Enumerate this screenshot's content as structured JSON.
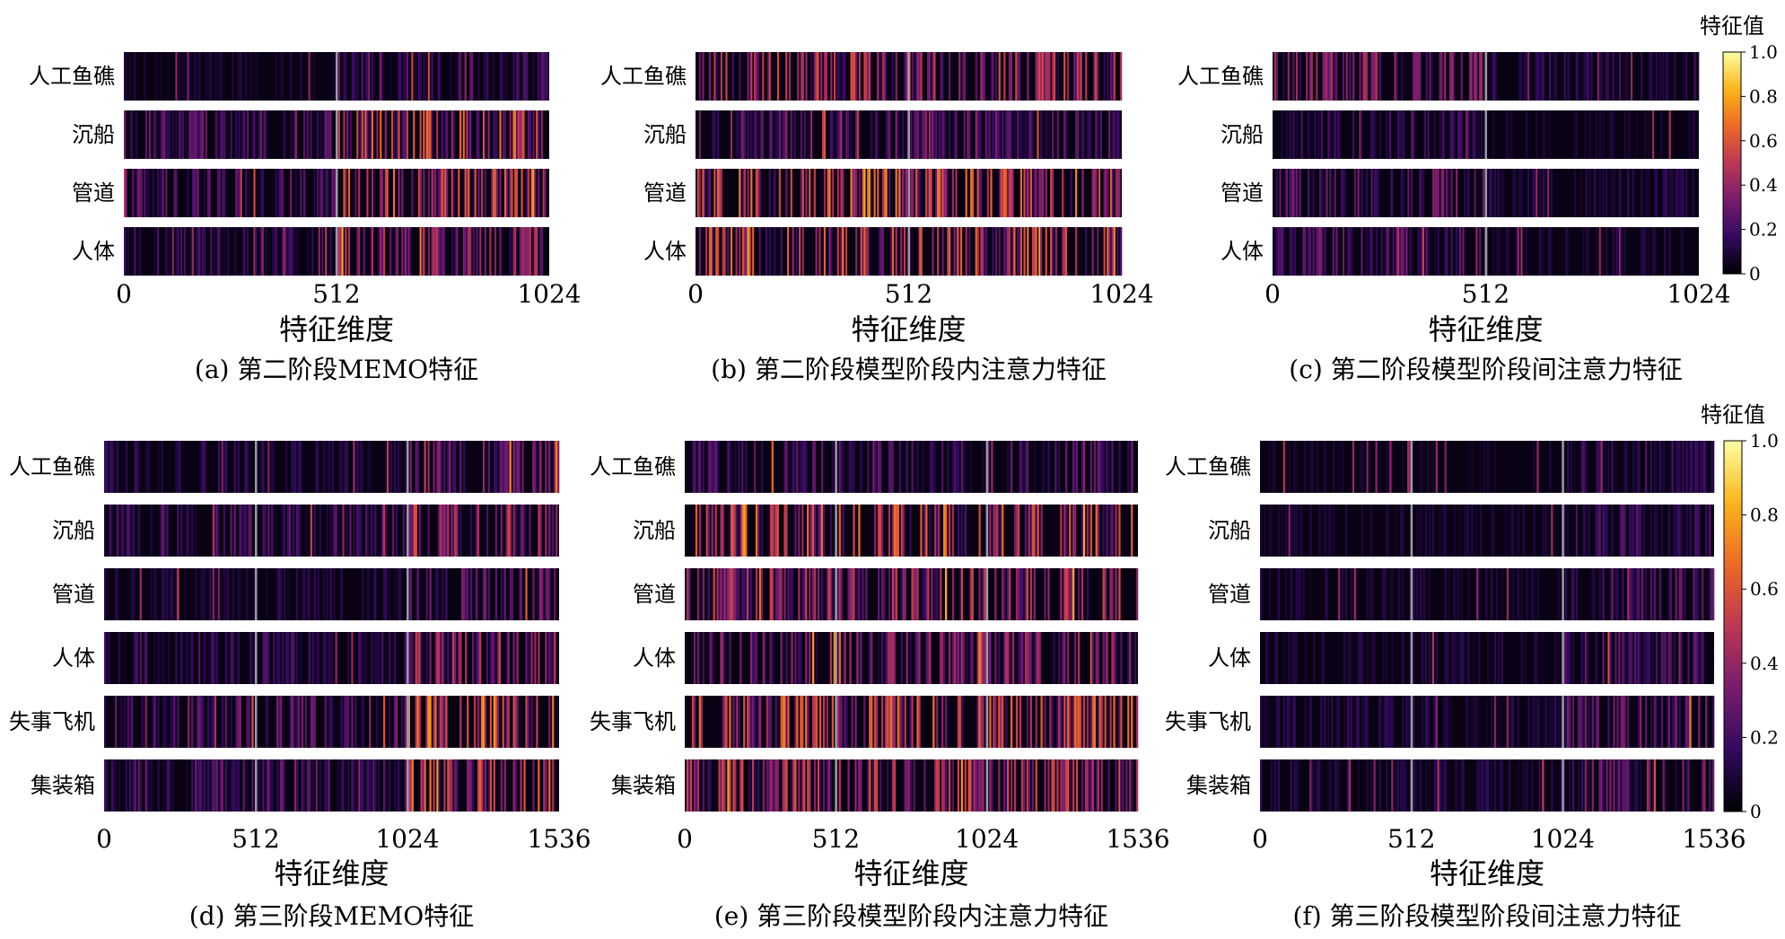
{
  "chart_data": [
    {
      "type": "heatmap",
      "caption": "(a) 第二阶段MEMO特征",
      "xlabel": "特征维度",
      "x_ticks": [
        "0",
        "512",
        "1024"
      ],
      "xlim": [
        0,
        1024
      ],
      "rows": [
        "人工鱼礁",
        "沉船",
        "管道",
        "人体"
      ],
      "row_mean_intensity": [
        0.12,
        0.3,
        0.3,
        0.22
      ],
      "bright_lines_at": [
        512
      ],
      "high_region": "512-1024"
    },
    {
      "type": "heatmap",
      "caption": "(b) 第二阶段模型阶段内注意力特征",
      "xlabel": "特征维度",
      "x_ticks": [
        "0",
        "512",
        "1024"
      ],
      "xlim": [
        0,
        1024
      ],
      "rows": [
        "人工鱼礁",
        "沉船",
        "管道",
        "人体"
      ],
      "row_mean_intensity": [
        0.26,
        0.14,
        0.32,
        0.3
      ],
      "bright_lines_at": [
        512
      ],
      "high_region": "0-1024"
    },
    {
      "type": "heatmap",
      "caption": "(c) 第二阶段模型阶段间注意力特征",
      "xlabel": "特征维度",
      "x_ticks": [
        "0",
        "512",
        "1024"
      ],
      "xlim": [
        0,
        1024
      ],
      "rows": [
        "人工鱼礁",
        "沉船",
        "管道",
        "人体"
      ],
      "row_mean_intensity": [
        0.2,
        0.1,
        0.16,
        0.14
      ],
      "bright_lines_at": [
        512
      ],
      "high_region": "0-512",
      "colorbar": {
        "label": "特征值",
        "ticks": [
          "0",
          "0.2",
          "0.4",
          "0.6",
          "0.8",
          "1.0"
        ],
        "range": [
          0,
          1
        ]
      }
    },
    {
      "type": "heatmap",
      "caption": "(d) 第三阶段MEMO特征",
      "xlabel": "特征维度",
      "x_ticks": [
        "0",
        "512",
        "1024",
        "1536"
      ],
      "xlim": [
        0,
        1536
      ],
      "rows": [
        "人工鱼礁",
        "沉船",
        "管道",
        "人体",
        "失事飞机",
        "集装箱"
      ],
      "row_mean_intensity": [
        0.18,
        0.26,
        0.16,
        0.24,
        0.34,
        0.3
      ],
      "bright_lines_at": [
        512,
        1024
      ],
      "high_region": "1024-1536"
    },
    {
      "type": "heatmap",
      "caption": "(e) 第三阶段模型阶段内注意力特征",
      "xlabel": "特征维度",
      "x_ticks": [
        "0",
        "512",
        "1024",
        "1536"
      ],
      "xlim": [
        0,
        1536
      ],
      "rows": [
        "人工鱼礁",
        "沉船",
        "管道",
        "人体",
        "失事飞机",
        "集装箱"
      ],
      "row_mean_intensity": [
        0.14,
        0.3,
        0.24,
        0.2,
        0.3,
        0.26
      ],
      "bright_lines_at": [
        512,
        1024
      ],
      "high_region": "0-1536"
    },
    {
      "type": "heatmap",
      "caption": "(f) 第三阶段模型阶段间注意力特征",
      "xlabel": "特征维度",
      "x_ticks": [
        "0",
        "512",
        "1024",
        "1536"
      ],
      "xlim": [
        0,
        1536
      ],
      "rows": [
        "人工鱼礁",
        "沉船",
        "管道",
        "人体",
        "失事飞机",
        "集装箱"
      ],
      "row_mean_intensity": [
        0.1,
        0.12,
        0.14,
        0.14,
        0.16,
        0.16
      ],
      "bright_lines_at": [
        512,
        1024
      ],
      "high_region": "1024-1536",
      "colorbar": {
        "label": "特征值",
        "ticks": [
          "0",
          "0.2",
          "0.4",
          "0.6",
          "0.8",
          "1.0"
        ],
        "range": [
          0,
          1
        ]
      }
    }
  ],
  "colormap": {
    "name": "inferno",
    "stops": [
      "#000004",
      "#320a5e",
      "#781c6d",
      "#bc3754",
      "#ed6925",
      "#fbb61a",
      "#fcffa4"
    ]
  }
}
